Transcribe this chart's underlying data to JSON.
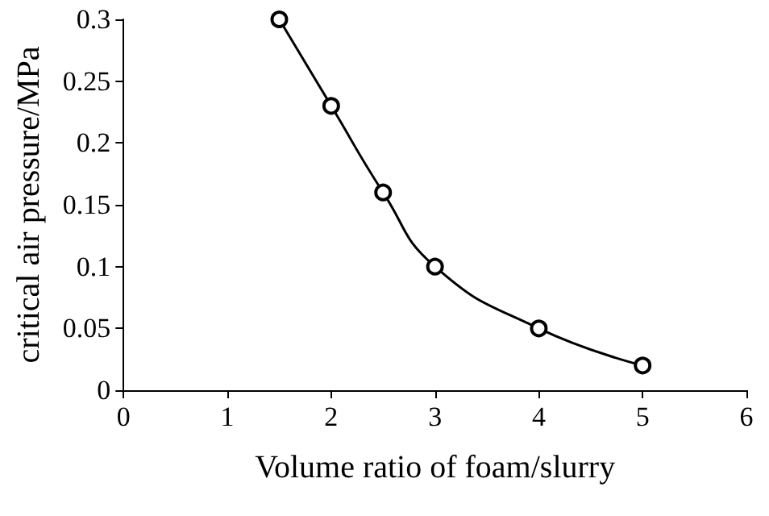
{
  "chart_data": {
    "type": "line",
    "xlabel": "Volume ratio of foam/slurry",
    "ylabel": "critical air pressure/MPa",
    "x": [
      1.5,
      2,
      2.5,
      3,
      4,
      5
    ],
    "series": [
      {
        "color": "#000000",
        "values": [
          0.3,
          0.23,
          0.16,
          0.1,
          0.05,
          0.02
        ]
      }
    ],
    "xlim": [
      0,
      6
    ],
    "xticks": [
      0,
      1,
      2,
      3,
      4,
      5,
      6
    ],
    "ylim": [
      0,
      0.3
    ],
    "yticks": [
      0,
      0.05,
      0.1,
      0.15,
      0.2,
      0.25,
      0.3
    ],
    "marker": "circle",
    "line_style": "solid"
  }
}
